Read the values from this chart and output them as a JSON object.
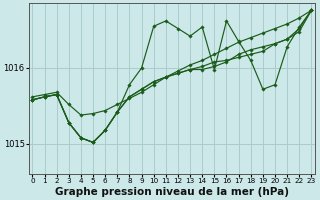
{
  "bg_color": "#cce8e8",
  "grid_color": "#aacccc",
  "line_color": "#1a5c1a",
  "marker_color": "#1a5c1a",
  "xlabel": "Graphe pression niveau de la mer (hPa)",
  "xlabel_fontsize": 7.5,
  "ylim": [
    1014.6,
    1016.85
  ],
  "xlim": [
    -0.3,
    23.3
  ],
  "yticks": [
    1015.0,
    1016.0
  ],
  "xticks": [
    0,
    1,
    2,
    3,
    4,
    5,
    6,
    7,
    8,
    9,
    10,
    11,
    12,
    13,
    14,
    15,
    16,
    17,
    18,
    19,
    20,
    21,
    22,
    23
  ],
  "series": [
    [
      1015.62,
      1015.65,
      1015.68,
      1015.52,
      1015.38,
      1015.4,
      1015.44,
      1015.52,
      1015.6,
      1015.68,
      1015.78,
      1015.88,
      1015.96,
      1016.04,
      1016.1,
      1016.18,
      1016.26,
      1016.34,
      1016.4,
      1016.46,
      1016.52,
      1016.58,
      1016.66,
      1016.76
    ],
    [
      1015.58,
      1015.62,
      1015.65,
      1015.28,
      1015.08,
      1015.02,
      1015.18,
      1015.42,
      1015.78,
      1016.0,
      1016.55,
      1016.62,
      1016.52,
      1016.42,
      1016.54,
      1015.98,
      1016.62,
      1016.35,
      1016.1,
      1015.72,
      1015.78,
      1016.28,
      1016.54,
      1016.76
    ],
    [
      1015.58,
      1015.62,
      1015.65,
      1015.28,
      1015.08,
      1015.02,
      1015.18,
      1015.42,
      1015.62,
      1015.72,
      1015.82,
      1015.88,
      1015.93,
      1015.98,
      1015.98,
      1016.02,
      1016.08,
      1016.18,
      1016.24,
      1016.28,
      1016.32,
      1016.38,
      1016.48,
      1016.76
    ],
    [
      1015.58,
      1015.62,
      1015.65,
      1015.28,
      1015.08,
      1015.02,
      1015.18,
      1015.42,
      1015.62,
      1015.72,
      1015.82,
      1015.88,
      1015.93,
      1015.98,
      1016.02,
      1016.08,
      1016.1,
      1016.14,
      1016.18,
      1016.22,
      1016.32,
      1016.38,
      1016.52,
      1016.76
    ]
  ]
}
